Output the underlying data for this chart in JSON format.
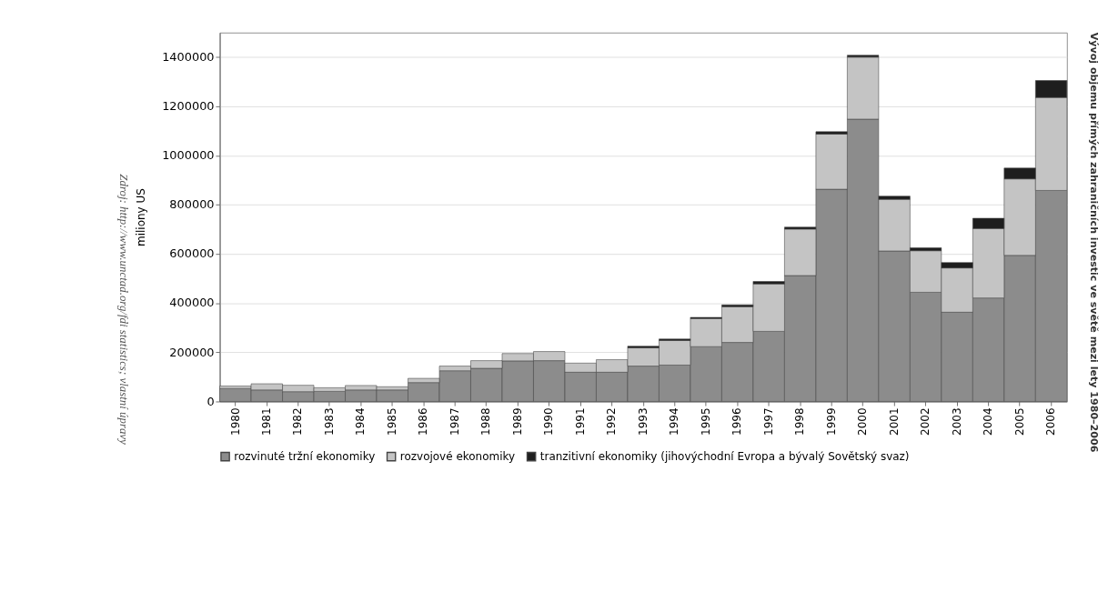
{
  "chart_data": {
    "type": "bar",
    "title": "Vývoj objemu přímých zahraničních investic ve světě mezi lety 1980–2006",
    "ylabel": "miliony US",
    "annotations": [
      "Zdroj: http://www.unctad.org/fdi statistics; vlastní úpravy"
    ],
    "categories": [
      "1980",
      "1981",
      "1982",
      "1983",
      "1984",
      "1985",
      "1986",
      "1987",
      "1988",
      "1989",
      "1990",
      "1991",
      "1992",
      "1993",
      "1994",
      "1995",
      "1996",
      "1997",
      "1998",
      "1999",
      "2000",
      "2001",
      "2002",
      "2003",
      "2004",
      "2005",
      "2006"
    ],
    "stacked": true,
    "series": [
      {
        "name": "rozvinuté tržní ekonomiky",
        "color": "#8c8c8c",
        "values": [
          53000,
          47000,
          40000,
          41000,
          47000,
          47000,
          77000,
          125000,
          135000,
          165000,
          166000,
          119000,
          119000,
          144000,
          148000,
          223000,
          240000,
          285000,
          512000,
          863000,
          1148000,
          612000,
          444000,
          363000,
          421000,
          594000,
          858000
        ]
      },
      {
        "name": "rozvojové ekonomiky",
        "color": "#c4c4c4",
        "values": [
          10000,
          25000,
          26000,
          15000,
          18000,
          13000,
          17000,
          19000,
          31000,
          30000,
          37000,
          37000,
          51000,
          74000,
          100000,
          114000,
          145000,
          193000,
          189000,
          224000,
          252000,
          210000,
          169000,
          180000,
          282000,
          311000,
          378000
        ]
      },
      {
        "name": "tranzitivní ekonomiky (jihovýchodní Evropa a bývalý Sovětský svaz)",
        "color": "#1e1e1e",
        "values": [
          null,
          null,
          null,
          null,
          null,
          null,
          null,
          null,
          null,
          null,
          null,
          null,
          null,
          7000,
          6000,
          5000,
          8000,
          10000,
          8000,
          10000,
          8000,
          13000,
          12000,
          22000,
          42000,
          44000,
          69000
        ]
      }
    ],
    "ylim": [
      0,
      1500000
    ],
    "yticks": [
      0,
      200000,
      400000,
      600000,
      800000,
      1000000,
      1200000,
      1400000
    ],
    "grid": "y",
    "legend": "bottom"
  }
}
